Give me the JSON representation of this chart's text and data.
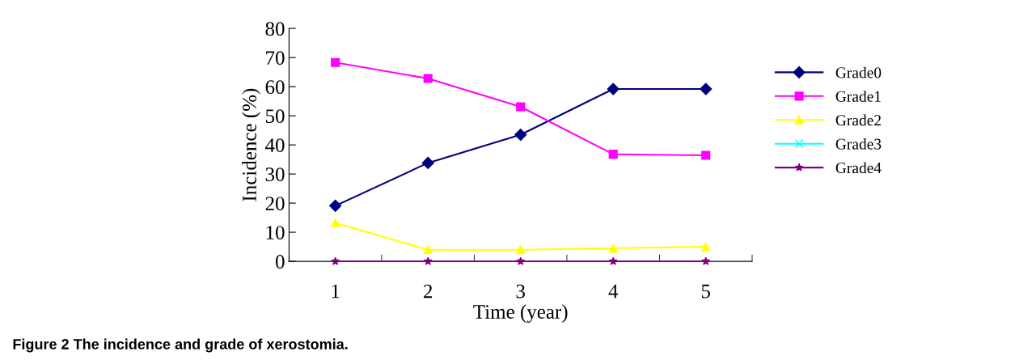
{
  "chart_data": {
    "type": "line",
    "xlabel": "Time (year)",
    "ylabel": "Incidence (%)",
    "categories": [
      "1",
      "2",
      "3",
      "4",
      "5"
    ],
    "series": [
      {
        "name": "Grade0",
        "color": "#000080",
        "marker": "diamond",
        "values": [
          19.1,
          33.8,
          43.5,
          59.2,
          59.2
        ]
      },
      {
        "name": "Grade1",
        "color": "#ff00ff",
        "marker": "square",
        "values": [
          68.3,
          62.8,
          53.1,
          36.8,
          36.4
        ]
      },
      {
        "name": "Grade2",
        "color": "#ffff00",
        "marker": "triangle",
        "values": [
          13.2,
          4.0,
          4.0,
          4.5,
          5.0
        ]
      },
      {
        "name": "Grade3",
        "color": "#00ffff",
        "marker": "cross",
        "values": [
          null,
          null,
          null,
          null,
          null
        ]
      },
      {
        "name": "Grade4",
        "color": "#800080",
        "marker": "star",
        "values": [
          0,
          0,
          0,
          0,
          0
        ]
      }
    ],
    "ylim": [
      0,
      80
    ],
    "yticks": [
      0,
      10,
      20,
      30,
      40,
      50,
      60,
      70,
      80
    ],
    "grid": false,
    "legend": "right",
    "line_style": "solid",
    "annotations": [
      "Figure 2 The incidence and grade of xerostomia."
    ]
  }
}
